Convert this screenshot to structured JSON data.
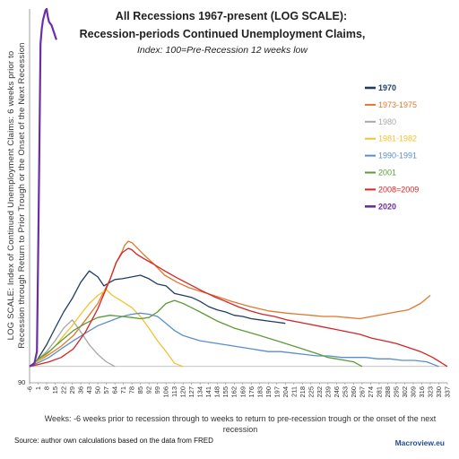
{
  "chart_data": {
    "type": "line",
    "title": "All Recessions 1967-present (LOG SCALE):",
    "subtitle": "Recession-periods Continued Unemployment Claims,",
    "subtitle2": "Index: 100=Pre-Recession 12 weeks low",
    "ylabel_line1": "LOG SCALE: Index of Continued Unemployment Claims: 6 weeks prior to",
    "ylabel_line2": "Recession through Return to Prior Trough or the Onset of the Next Recession",
    "xlabel_line1": "Weeks: -6 weeks prior to recession through to weeks to return to pre-recession trough or the onset of the next",
    "xlabel_line2": "recession",
    "source": "Source: author own calculations based on the data from FRED",
    "brand": "Macroview.eu",
    "y_tick_label": "90",
    "x_ticks": [
      "-6",
      "1",
      "8",
      "15",
      "22",
      "29",
      "36",
      "43",
      "50",
      "57",
      "64",
      "71",
      "78",
      "85",
      "92",
      "99",
      "106",
      "113",
      "120",
      "127",
      "134",
      "141",
      "148",
      "155",
      "162",
      "169",
      "176",
      "183",
      "190",
      "197",
      "204",
      "211",
      "218",
      "225",
      "232",
      "239",
      "246",
      "253",
      "260",
      "267",
      "274",
      "281",
      "288",
      "295",
      "302",
      "309",
      "316",
      "323",
      "330",
      "337"
    ],
    "xlim": [
      -6,
      337
    ],
    "ylim": [
      90,
      1000
    ],
    "log_scale": true,
    "baseline": 100,
    "legend_position": "right",
    "series": [
      {
        "name": "1970",
        "color": "#1f3e66",
        "x": [
          -6,
          0,
          8,
          15,
          22,
          29,
          36,
          43,
          50,
          55,
          60,
          64,
          70,
          78,
          85,
          92,
          99,
          106,
          113,
          120,
          127,
          134,
          141,
          148,
          155,
          162,
          169,
          176,
          183,
          190,
          197,
          204
        ],
        "y": [
          100,
          104,
          115,
          128,
          142,
          155,
          172,
          185,
          178,
          168,
          172,
          175,
          176,
          178,
          180,
          176,
          170,
          168,
          160,
          158,
          156,
          152,
          147,
          144,
          142,
          139,
          138,
          136,
          135,
          134,
          133,
          132
        ]
      },
      {
        "name": "1973-1975",
        "color": "#e0782d",
        "x": [
          -6,
          0,
          10,
          20,
          30,
          40,
          50,
          60,
          65,
          70,
          72,
          75,
          78,
          82,
          88,
          95,
          105,
          115,
          125,
          135,
          145,
          160,
          175,
          190,
          205,
          215,
          225,
          235,
          245,
          255,
          265,
          275,
          285,
          295,
          305,
          315,
          323
        ],
        "y": [
          100,
          103,
          108,
          114,
          122,
          135,
          150,
          175,
          195,
          210,
          218,
          224,
          222,
          215,
          205,
          195,
          180,
          172,
          166,
          162,
          158,
          152,
          147,
          143,
          141,
          140,
          139,
          138,
          138,
          137,
          136,
          138,
          140,
          142,
          144,
          150,
          158
        ]
      },
      {
        "name": "1980",
        "color": "#a8a8a8",
        "x": [
          -6,
          0,
          8,
          15,
          22,
          29,
          36,
          43,
          50,
          57,
          64
        ],
        "y": [
          100,
          104,
          110,
          118,
          128,
          135,
          125,
          115,
          108,
          103,
          100
        ]
      },
      {
        "name": "1981-1982",
        "color": "#f2c230",
        "x": [
          -6,
          0,
          8,
          15,
          22,
          29,
          36,
          43,
          50,
          55,
          57,
          62,
          70,
          78,
          85,
          92,
          99,
          106,
          113,
          120
        ],
        "y": [
          100,
          103,
          108,
          114,
          122,
          130,
          140,
          150,
          158,
          162,
          164,
          158,
          152,
          146,
          138,
          128,
          118,
          110,
          102,
          100
        ]
      },
      {
        "name": "1990-1991",
        "color": "#5b8ec9",
        "x": [
          -6,
          0,
          10,
          20,
          30,
          40,
          50,
          60,
          70,
          78,
          85,
          92,
          99,
          106,
          113,
          120,
          127,
          134,
          141,
          148,
          155,
          162,
          169,
          176,
          183,
          190,
          200,
          210,
          220,
          230,
          240,
          250,
          260,
          270,
          280,
          290,
          300,
          310,
          320,
          330
        ],
        "y": [
          100,
          102,
          106,
          112,
          118,
          124,
          130,
          134,
          138,
          140,
          141,
          140,
          138,
          132,
          126,
          122,
          120,
          118,
          117,
          116,
          115,
          114,
          113,
          112,
          111,
          110,
          110,
          109,
          108,
          107,
          107,
          106,
          106,
          106,
          105,
          105,
          104,
          104,
          103,
          100
        ]
      },
      {
        "name": "2001",
        "color": "#5e9a37",
        "x": [
          -6,
          0,
          10,
          20,
          30,
          40,
          50,
          60,
          70,
          78,
          85,
          92,
          99,
          106,
          113,
          120,
          127,
          134,
          141,
          148,
          155,
          162,
          169,
          176,
          183,
          190,
          197,
          204,
          211,
          218,
          225,
          232,
          239,
          246,
          253,
          260,
          267
        ],
        "y": [
          100,
          104,
          110,
          118,
          126,
          132,
          137,
          139,
          138,
          137,
          136,
          137,
          142,
          150,
          153,
          150,
          146,
          142,
          138,
          134,
          131,
          128,
          126,
          124,
          122,
          120,
          118,
          116,
          114,
          112,
          110,
          108,
          106,
          105,
          104,
          103,
          100
        ]
      },
      {
        "name": "2008=2009",
        "color": "#d42424",
        "x": [
          -6,
          0,
          10,
          20,
          30,
          40,
          50,
          60,
          65,
          70,
          75,
          78,
          82,
          88,
          95,
          105,
          115,
          125,
          135,
          145,
          155,
          165,
          175,
          185,
          195,
          205,
          215,
          225,
          235,
          245,
          255,
          265,
          275,
          285,
          295,
          305,
          315,
          325,
          337
        ],
        "y": [
          100,
          101,
          103,
          106,
          112,
          125,
          145,
          175,
          195,
          208,
          214,
          212,
          206,
          200,
          194,
          185,
          177,
          170,
          163,
          157,
          152,
          147,
          143,
          140,
          138,
          135,
          133,
          131,
          129,
          127,
          125,
          123,
          120,
          118,
          116,
          113,
          110,
          106,
          100
        ]
      },
      {
        "name": "2020",
        "color": "#6a2fa8",
        "x": [
          -6,
          -4,
          -2,
          0,
          1,
          2,
          3,
          4,
          5,
          6,
          7,
          8,
          9,
          10,
          12,
          14,
          16
        ],
        "y": [
          100,
          101,
          102,
          110,
          200,
          400,
          800,
          880,
          930,
          960,
          990,
          1000,
          950,
          920,
          900,
          860,
          820
        ]
      }
    ]
  }
}
